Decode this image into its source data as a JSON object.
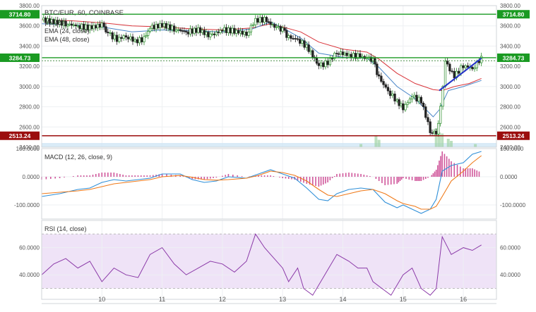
{
  "chart_data": [
    {
      "type": "candlestick",
      "title": "BTC/EUR, 60, COINBASE",
      "legend": [
        "Vol (20)",
        "EMA (24, close)",
        "EMA (48, close)"
      ],
      "ylim": [
        2400,
        3800
      ],
      "y_ticks": [
        "3800.00",
        "3600.00",
        "3400.00",
        "3200.00",
        "3000.00",
        "2800.00",
        "2600.00",
        "2400.00"
      ],
      "price_labels": [
        {
          "value": 3714.8,
          "text": "3714.80",
          "color": "#1a9a22"
        },
        {
          "value": 3284.73,
          "text": "3284.73",
          "color": "#1a9a22"
        },
        {
          "value": 2513.24,
          "text": "2513.24",
          "color": "#9b0d0d"
        }
      ],
      "horizontal_lines": [
        {
          "value": 3714.8,
          "color": "#1a9a22",
          "style": "solid"
        },
        {
          "value": 3284.73,
          "color": "#1a9a22",
          "style": "solid"
        },
        {
          "value": 3255,
          "color": "#4c8f4a",
          "style": "dotted"
        },
        {
          "value": 2513.24,
          "color": "#9b0d0d",
          "style": "solid"
        }
      ],
      "trendline": {
        "from": [
          15.6,
          2960
        ],
        "to": [
          16.3,
          3280
        ],
        "color": "#2432c8"
      },
      "path_close": [
        [
          9.0,
          3660
        ],
        [
          9.2,
          3640
        ],
        [
          9.4,
          3620
        ],
        [
          9.6,
          3600
        ],
        [
          9.8,
          3580
        ],
        [
          10.0,
          3610
        ],
        [
          10.1,
          3520
        ],
        [
          10.25,
          3470
        ],
        [
          10.4,
          3500
        ],
        [
          10.55,
          3450
        ],
        [
          10.7,
          3470
        ],
        [
          10.8,
          3580
        ],
        [
          11.0,
          3610
        ],
        [
          11.2,
          3570
        ],
        [
          11.4,
          3540
        ],
        [
          11.6,
          3560
        ],
        [
          11.8,
          3500
        ],
        [
          12.0,
          3560
        ],
        [
          12.2,
          3550
        ],
        [
          12.4,
          3520
        ],
        [
          12.55,
          3660
        ],
        [
          12.7,
          3660
        ],
        [
          12.9,
          3580
        ],
        [
          13.0,
          3560
        ],
        [
          13.1,
          3480
        ],
        [
          13.25,
          3470
        ],
        [
          13.4,
          3390
        ],
        [
          13.5,
          3310
        ],
        [
          13.6,
          3200
        ],
        [
          13.75,
          3240
        ],
        [
          13.9,
          3340
        ],
        [
          14.1,
          3310
        ],
        [
          14.25,
          3300
        ],
        [
          14.4,
          3280
        ],
        [
          14.5,
          3260
        ],
        [
          14.6,
          3080
        ],
        [
          14.75,
          2960
        ],
        [
          14.9,
          2850
        ],
        [
          15.0,
          2790
        ],
        [
          15.15,
          2900
        ],
        [
          15.3,
          2860
        ],
        [
          15.45,
          2560
        ],
        [
          15.55,
          2540
        ],
        [
          15.62,
          2780
        ],
        [
          15.7,
          3240
        ],
        [
          15.85,
          3100
        ],
        [
          16.0,
          3210
        ],
        [
          16.15,
          3180
        ],
        [
          16.3,
          3280
        ]
      ],
      "ema24": [
        [
          9.0,
          3620
        ],
        [
          9.5,
          3610
        ],
        [
          10.0,
          3590
        ],
        [
          10.5,
          3540
        ],
        [
          11.0,
          3560
        ],
        [
          11.5,
          3550
        ],
        [
          12.0,
          3540
        ],
        [
          12.5,
          3570
        ],
        [
          12.8,
          3640
        ],
        [
          13.0,
          3580
        ],
        [
          13.3,
          3480
        ],
        [
          13.6,
          3330
        ],
        [
          14.0,
          3290
        ],
        [
          14.4,
          3280
        ],
        [
          14.6,
          3190
        ],
        [
          14.9,
          3000
        ],
        [
          15.2,
          2880
        ],
        [
          15.5,
          2700
        ],
        [
          15.6,
          2770
        ],
        [
          15.75,
          2960
        ],
        [
          16.0,
          3000
        ],
        [
          16.3,
          3060
        ]
      ],
      "ema48": [
        [
          9.0,
          3660
        ],
        [
          9.5,
          3650
        ],
        [
          10.0,
          3630
        ],
        [
          10.5,
          3600
        ],
        [
          11.0,
          3590
        ],
        [
          11.5,
          3570
        ],
        [
          12.0,
          3560
        ],
        [
          12.5,
          3580
        ],
        [
          12.8,
          3620
        ],
        [
          13.0,
          3590
        ],
        [
          13.3,
          3540
        ],
        [
          13.6,
          3440
        ],
        [
          14.0,
          3370
        ],
        [
          14.4,
          3340
        ],
        [
          14.6,
          3270
        ],
        [
          14.9,
          3130
        ],
        [
          15.2,
          3030
        ],
        [
          15.5,
          2970
        ],
        [
          15.65,
          2960
        ],
        [
          15.85,
          3000
        ],
        [
          16.1,
          3030
        ],
        [
          16.3,
          3080
        ]
      ],
      "volume_spikes": [
        [
          14.3,
          0.15
        ],
        [
          14.55,
          0.55
        ],
        [
          14.6,
          0.35
        ],
        [
          15.55,
          0.9
        ],
        [
          15.6,
          0.7
        ],
        [
          15.65,
          0.65
        ],
        [
          15.75,
          0.4
        ],
        [
          15.8,
          0.3
        ],
        [
          16.2,
          0.15
        ]
      ]
    },
    {
      "type": "line",
      "title": "MACD (12, 26, close, 9)",
      "ylim": [
        -150,
        100
      ],
      "y_ticks": [
        "100.0000",
        "0.0000",
        "-100.0000"
      ],
      "series": [
        {
          "name": "MACD",
          "color": "#2f8fd8",
          "points": [
            [
              9.0,
              -70
            ],
            [
              9.3,
              -60
            ],
            [
              9.6,
              -45
            ],
            [
              9.8,
              -40
            ],
            [
              10.0,
              -20
            ],
            [
              10.2,
              -10
            ],
            [
              10.4,
              -15
            ],
            [
              10.6,
              -10
            ],
            [
              10.8,
              -5
            ],
            [
              11.0,
              10
            ],
            [
              11.3,
              10
            ],
            [
              11.5,
              -10
            ],
            [
              11.7,
              -20
            ],
            [
              11.9,
              -15
            ],
            [
              12.1,
              0
            ],
            [
              12.4,
              -5
            ],
            [
              12.6,
              10
            ],
            [
              12.8,
              25
            ],
            [
              13.0,
              10
            ],
            [
              13.2,
              -5
            ],
            [
              13.4,
              -40
            ],
            [
              13.6,
              -80
            ],
            [
              13.75,
              -85
            ],
            [
              13.9,
              -60
            ],
            [
              14.1,
              -45
            ],
            [
              14.3,
              -40
            ],
            [
              14.5,
              -45
            ],
            [
              14.7,
              -90
            ],
            [
              14.9,
              -110
            ],
            [
              15.0,
              -100
            ],
            [
              15.2,
              -120
            ],
            [
              15.3,
              -130
            ],
            [
              15.45,
              -115
            ],
            [
              15.55,
              -80
            ],
            [
              15.65,
              20
            ],
            [
              15.8,
              40
            ],
            [
              16.0,
              50
            ],
            [
              16.15,
              80
            ],
            [
              16.3,
              90
            ]
          ]
        },
        {
          "name": "Signal",
          "color": "#ef7a1a",
          "points": [
            [
              9.0,
              -60
            ],
            [
              9.3,
              -55
            ],
            [
              9.6,
              -50
            ],
            [
              9.8,
              -45
            ],
            [
              10.0,
              -35
            ],
            [
              10.2,
              -25
            ],
            [
              10.4,
              -20
            ],
            [
              10.6,
              -15
            ],
            [
              10.8,
              -10
            ],
            [
              11.0,
              0
            ],
            [
              11.3,
              5
            ],
            [
              11.5,
              -2
            ],
            [
              11.7,
              -10
            ],
            [
              11.9,
              -12
            ],
            [
              12.1,
              -10
            ],
            [
              12.4,
              -5
            ],
            [
              12.6,
              5
            ],
            [
              12.8,
              20
            ],
            [
              13.0,
              15
            ],
            [
              13.2,
              5
            ],
            [
              13.4,
              -15
            ],
            [
              13.6,
              -45
            ],
            [
              13.75,
              -65
            ],
            [
              13.9,
              -70
            ],
            [
              14.1,
              -60
            ],
            [
              14.3,
              -50
            ],
            [
              14.5,
              -45
            ],
            [
              14.7,
              -60
            ],
            [
              14.9,
              -85
            ],
            [
              15.0,
              -95
            ],
            [
              15.2,
              -105
            ],
            [
              15.3,
              -115
            ],
            [
              15.45,
              -115
            ],
            [
              15.55,
              -105
            ],
            [
              15.65,
              -70
            ],
            [
              15.8,
              -15
            ],
            [
              16.0,
              20
            ],
            [
              16.15,
              50
            ],
            [
              16.3,
              75
            ]
          ]
        }
      ]
    },
    {
      "type": "line",
      "title": "RSI (14, close)",
      "ylim": [
        22,
        80
      ],
      "y_ticks": [
        "60.0000",
        "40.0000"
      ],
      "band": [
        30,
        70
      ],
      "series": [
        {
          "name": "RSI",
          "color": "#8b3aa8",
          "points": [
            [
              9.0,
              40
            ],
            [
              9.2,
              48
            ],
            [
              9.4,
              52
            ],
            [
              9.6,
              45
            ],
            [
              9.8,
              50
            ],
            [
              10.0,
              35
            ],
            [
              10.2,
              45
            ],
            [
              10.4,
              40
            ],
            [
              10.6,
              38
            ],
            [
              10.8,
              55
            ],
            [
              11.0,
              60
            ],
            [
              11.2,
              48
            ],
            [
              11.4,
              40
            ],
            [
              11.6,
              45
            ],
            [
              11.8,
              50
            ],
            [
              12.0,
              48
            ],
            [
              12.2,
              42
            ],
            [
              12.4,
              50
            ],
            [
              12.55,
              70
            ],
            [
              12.7,
              60
            ],
            [
              12.9,
              50
            ],
            [
              13.0,
              45
            ],
            [
              13.1,
              35
            ],
            [
              13.25,
              45
            ],
            [
              13.35,
              30
            ],
            [
              13.5,
              25
            ],
            [
              13.7,
              40
            ],
            [
              13.9,
              55
            ],
            [
              14.1,
              50
            ],
            [
              14.25,
              45
            ],
            [
              14.4,
              45
            ],
            [
              14.5,
              35
            ],
            [
              14.65,
              30
            ],
            [
              14.8,
              25
            ],
            [
              15.0,
              40
            ],
            [
              15.15,
              45
            ],
            [
              15.3,
              30
            ],
            [
              15.45,
              25
            ],
            [
              15.55,
              30
            ],
            [
              15.65,
              68
            ],
            [
              15.8,
              55
            ],
            [
              16.0,
              60
            ],
            [
              16.15,
              58
            ],
            [
              16.3,
              62
            ]
          ]
        }
      ]
    }
  ],
  "x_ticks": [
    "10",
    "11",
    "12",
    "13",
    "14",
    "15",
    "16"
  ]
}
